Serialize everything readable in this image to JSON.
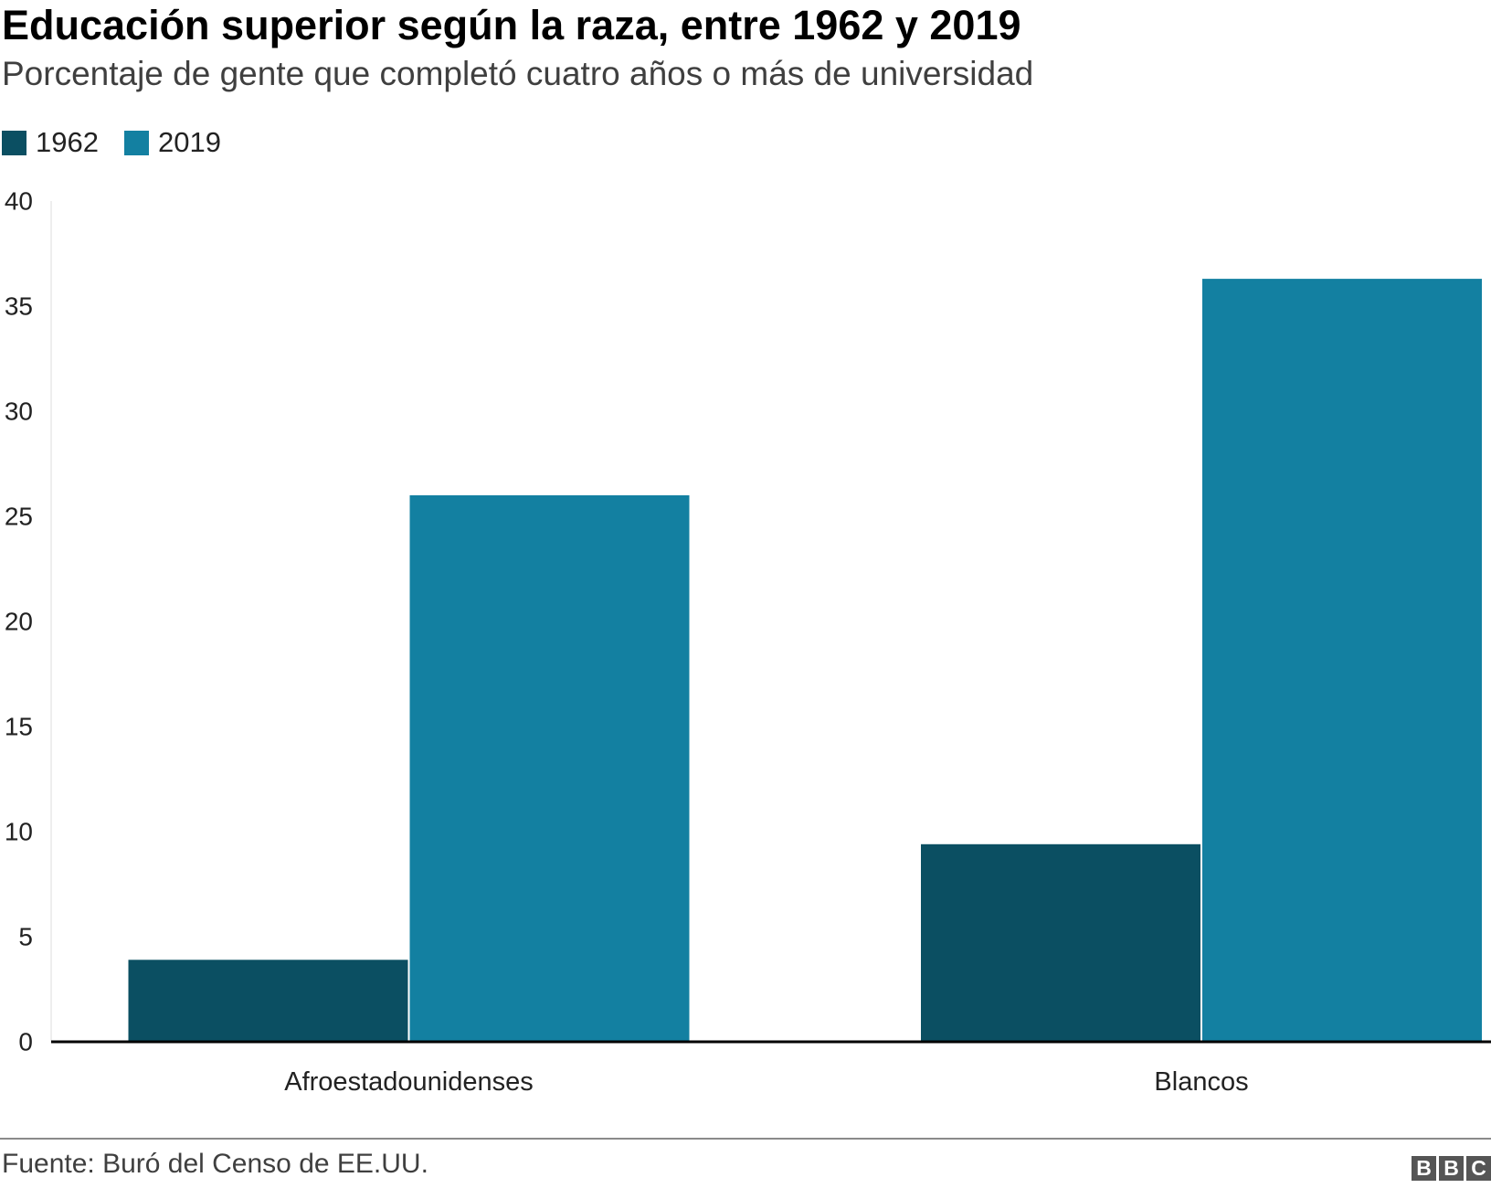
{
  "chart_data": {
    "type": "bar",
    "title": "Educación superior según la raza, entre 1962 y 2019",
    "subtitle": "Porcentaje de gente que completó cuatro años o más de universidad",
    "categories": [
      "Afroestadounidenses",
      "Blancos"
    ],
    "series": [
      {
        "name": "1962",
        "values": [
          3.9,
          9.4
        ],
        "color": "#0b4f62"
      },
      {
        "name": "2019",
        "values": [
          26.0,
          36.3
        ],
        "color": "#1380a1"
      }
    ],
    "ylim": [
      0,
      40
    ],
    "yticks": [
      0,
      5,
      10,
      15,
      20,
      25,
      30,
      35,
      40
    ],
    "grid": false,
    "legend_position": "top-left",
    "source": "Fuente: Buró del Censo de EE.UU."
  },
  "logo": {
    "letters": [
      "B",
      "B",
      "C"
    ]
  }
}
